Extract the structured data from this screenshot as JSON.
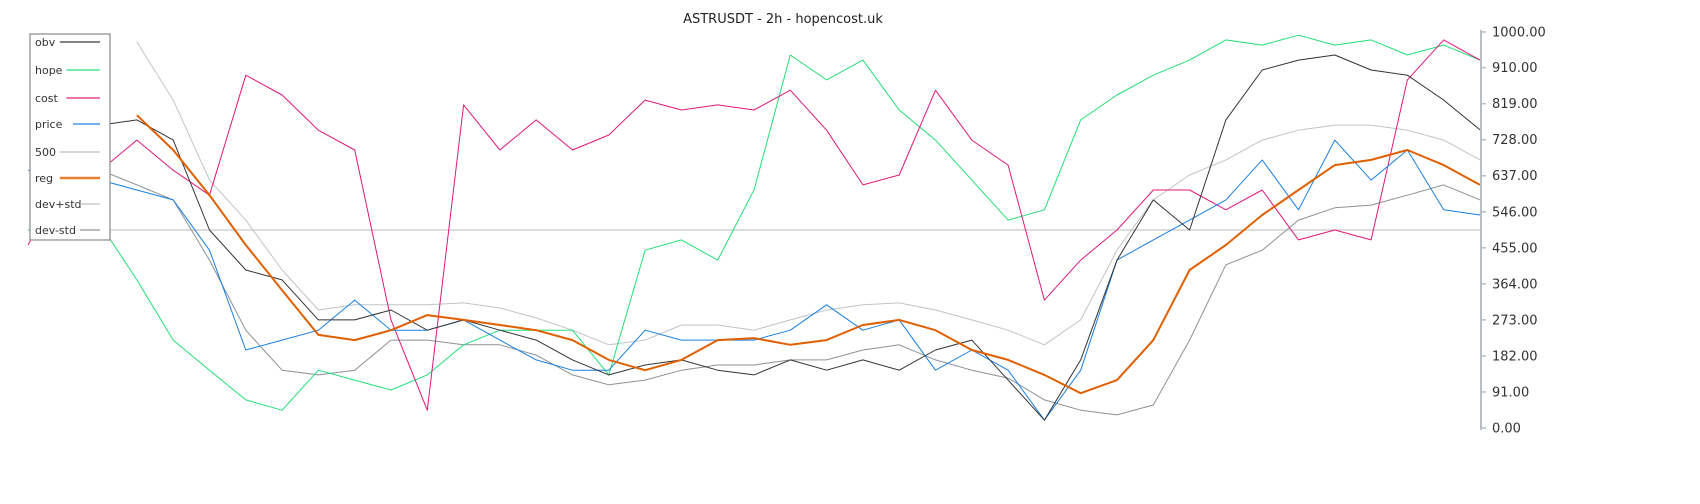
{
  "chart_data": {
    "type": "line",
    "title": "ASTRUSDT - 2h - hopencost.uk",
    "ylim": [
      0,
      1000
    ],
    "yticks": [
      "0.00",
      "91.00",
      "182.00",
      "273.00",
      "364.00",
      "455.00",
      "546.00",
      "637.00",
      "728.00",
      "819.00",
      "910.00",
      "1000.00"
    ],
    "ytick_values": [
      0,
      91,
      182,
      273,
      364,
      455,
      546,
      637,
      728,
      819,
      910,
      1000
    ],
    "grid": false,
    "legend_position": "top-left",
    "series": [
      {
        "name": "obv",
        "color": "#333333",
        "width": 1,
        "values": [
          null,
          740,
          765,
          778,
          727,
          500,
          399,
          374,
          273,
          273,
          298,
          247,
          273,
          247,
          222,
          172,
          134,
          159,
          172,
          146,
          134,
          172,
          146,
          172,
          146,
          197,
          222,
          121,
          20,
          172,
          424,
          576,
          500,
          778,
          904,
          929,
          942,
          904,
          891,
          828,
          753
        ]
      },
      {
        "name": "hope",
        "color": "#22dd77",
        "width": 1,
        "values": [
          500,
          475,
          513,
          374,
          222,
          146,
          71,
          45,
          146,
          121,
          96,
          134,
          210,
          247,
          247,
          247,
          134,
          449,
          475,
          424,
          601,
          942,
          879,
          929,
          803,
          727,
          626,
          525,
          551,
          778,
          841,
          891,
          929,
          980,
          967,
          992,
          967,
          980,
          942,
          967,
          929
        ]
      },
      {
        "name": "cost",
        "color": "#e0187a",
        "width": 1,
        "values": [
          462,
          626,
          651,
          727,
          651,
          588,
          891,
          841,
          752,
          702,
          273,
          45,
          816,
          702,
          778,
          702,
          740,
          828,
          803,
          816,
          803,
          853,
          752,
          614,
          639,
          853,
          727,
          664,
          323,
          424,
          500,
          601,
          601,
          551,
          601,
          475,
          500,
          475,
          879,
          980,
          929
        ]
      },
      {
        "name": "price",
        "color": "#1a7fe0",
        "width": 1,
        "values": [
          651,
          639,
          626,
          601,
          576,
          449,
          197,
          222,
          247,
          323,
          247,
          247,
          273,
          222,
          172,
          146,
          146,
          247,
          222,
          222,
          222,
          247,
          311,
          247,
          273,
          146,
          197,
          146,
          20,
          146,
          424,
          475,
          525,
          576,
          677,
          551,
          727,
          626,
          702,
          551,
          538
        ]
      },
      {
        "name": "500",
        "color": "#bbbbbb",
        "width": 1,
        "values": [
          500,
          500,
          500,
          500,
          500,
          500,
          500,
          500,
          500,
          500,
          500,
          500,
          500,
          500,
          500,
          500,
          500,
          500,
          500,
          500,
          500,
          500,
          500,
          500,
          500,
          500,
          500,
          500,
          500,
          500,
          500,
          500,
          500,
          500,
          500,
          500,
          500,
          500,
          500,
          500,
          500
        ]
      },
      {
        "name": "reg",
        "color": "#e06000",
        "width": 2,
        "values": [
          null,
          null,
          null,
          790,
          702,
          588,
          462,
          348,
          235,
          222,
          247,
          285,
          273,
          260,
          247,
          222,
          172,
          146,
          172,
          222,
          227,
          210,
          222,
          260,
          273,
          247,
          197,
          172,
          134,
          88,
          121,
          222,
          399,
          462,
          538,
          601,
          664,
          677,
          702,
          664,
          614
        ]
      },
      {
        "name": "dev+std",
        "color": "#bfc4c8",
        "width": 1,
        "values": [
          null,
          null,
          null,
          975,
          828,
          626,
          525,
          399,
          298,
          311,
          311,
          311,
          316,
          303,
          278,
          247,
          210,
          222,
          260,
          260,
          247,
          273,
          298,
          311,
          316,
          298,
          273,
          247,
          210,
          273,
          449,
          576,
          639,
          677,
          727,
          752,
          765,
          765,
          752,
          727,
          677
        ]
      },
      {
        "name": "dev-std",
        "color": "#8a9297",
        "width": 1,
        "values": [
          null,
          null,
          651,
          614,
          576,
          424,
          247,
          146,
          134,
          146,
          222,
          222,
          210,
          210,
          184,
          134,
          109,
          121,
          146,
          159,
          159,
          172,
          172,
          197,
          210,
          172,
          146,
          126,
          71,
          45,
          33,
          58,
          222,
          412,
          449,
          525,
          556,
          563,
          588,
          614,
          576
        ]
      }
    ]
  }
}
